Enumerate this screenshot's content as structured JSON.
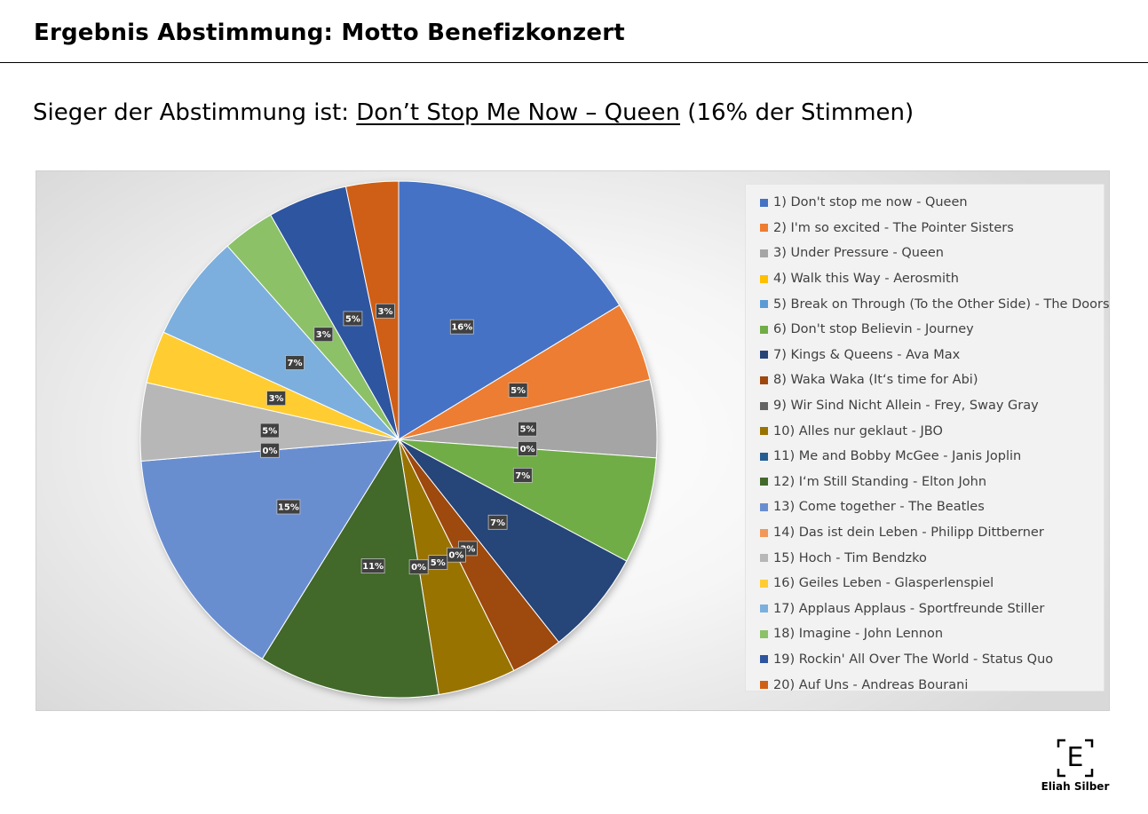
{
  "header": {
    "title": "Ergebnis Abstimmung: Motto Benefizkonzert",
    "subtitle_prefix": "Sieger der Abstimmung ist: ",
    "subtitle_winner": "Don’t Stop Me Now – Queen",
    "subtitle_suffix": " (16% der Stimmen)"
  },
  "logo": {
    "letter": "E",
    "name": "Eliah Silber"
  },
  "chart_data": {
    "type": "pie",
    "title": "",
    "legend_position": "right",
    "slices": [
      {
        "label": "1) Don't stop me now - Queen",
        "percent": 16.4,
        "value_label": "16%",
        "color": "#4472c4"
      },
      {
        "label": "2) I'm so excited - The Pointer Sisters",
        "percent": 5.0,
        "value_label": "5%",
        "color": "#ed7d31"
      },
      {
        "label": "3) Under Pressure - Queen",
        "percent": 4.9,
        "value_label": "5%",
        "color": "#a5a5a5"
      },
      {
        "label": "4) Walk this Way - Aerosmith",
        "percent": 0,
        "value_label": "0%",
        "color": "#ffc000"
      },
      {
        "label": "5) Break on Through (To the Other Side) - The Doors",
        "percent": 0,
        "value_label": "",
        "color": "#5b9bd5"
      },
      {
        "label": "6) Don't stop Believin - Journey",
        "percent": 6.7,
        "value_label": "7%",
        "color": "#70ad47"
      },
      {
        "label": "7) Kings & Queens - Ava Max",
        "percent": 6.6,
        "value_label": "7%",
        "color": "#264478"
      },
      {
        "label": "8) Waka Waka (It‘s time for Abi)",
        "percent": 3.3,
        "value_label": "3%",
        "color": "#9e480e"
      },
      {
        "label": "9) Wir Sind Nicht Allein - Frey, Sway Gray",
        "percent": 0,
        "value_label": "0%",
        "color": "#636363"
      },
      {
        "label": "10) Alles nur geklaut - JBO",
        "percent": 4.9,
        "value_label": "5%",
        "color": "#997300"
      },
      {
        "label": "11) Me and Bobby McGee - Janis Joplin",
        "percent": 0,
        "value_label": "0%",
        "color": "#255e91"
      },
      {
        "label": "12) I‘m Still Standing - Elton John",
        "percent": 11.4,
        "value_label": "11%",
        "color": "#43682b"
      },
      {
        "label": "13) Come together - The Beatles",
        "percent": 14.9,
        "value_label": "15%",
        "color": "#698ed0"
      },
      {
        "label": "14) Das ist dein Leben - Philipp Dittberner",
        "percent": 0,
        "value_label": "0%",
        "color": "#f1975a"
      },
      {
        "label": "15) Hoch - Tim Bendzko",
        "percent": 4.9,
        "value_label": "5%",
        "color": "#b7b7b7"
      },
      {
        "label": "16) Geiles Leben - Glasperlenspiel",
        "percent": 3.3,
        "value_label": "3%",
        "color": "#ffcd33"
      },
      {
        "label": "17) Applaus Applaus - Sportfreunde Stiller",
        "percent": 6.7,
        "value_label": "7%",
        "color": "#7cafdd"
      },
      {
        "label": "18) Imagine - John Lennon",
        "percent": 3.3,
        "value_label": "3%",
        "color": "#8cc168"
      },
      {
        "label": "19) Rockin' All Over The World - Status Quo",
        "percent": 5.0,
        "value_label": "5%",
        "color": "#2e54a0"
      },
      {
        "label": "20) Auf Uns - Andreas Bourani",
        "percent": 3.3,
        "value_label": "3%",
        "color": "#cf5f14"
      }
    ]
  }
}
